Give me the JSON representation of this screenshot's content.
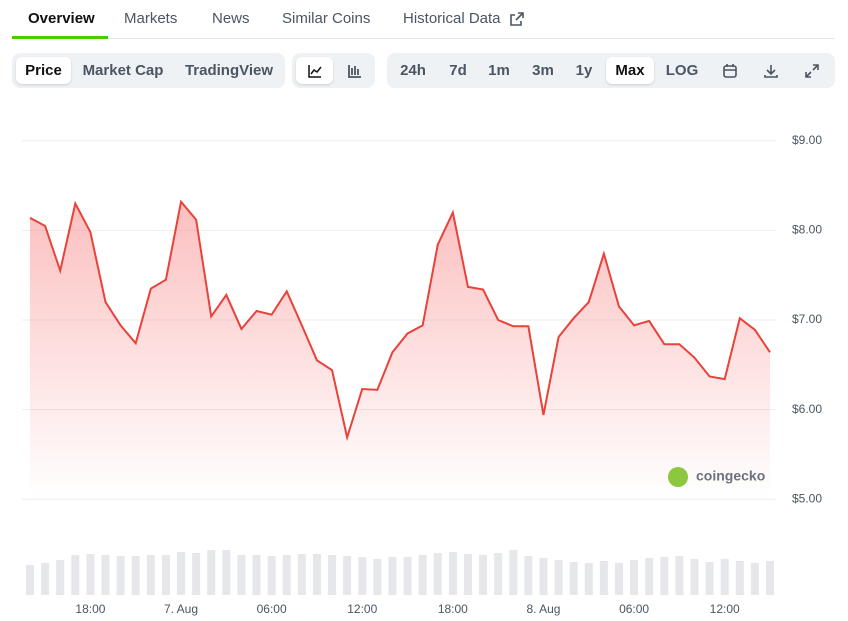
{
  "tabs": [
    "Overview",
    "Markets",
    "News",
    "Similar Coins",
    "Historical Data"
  ],
  "metric_buttons": [
    "Price",
    "Market Cap",
    "TradingView"
  ],
  "range_buttons": [
    "24h",
    "7d",
    "1m",
    "3m",
    "1y",
    "Max",
    "LOG"
  ],
  "watermark": "coingecko",
  "chart_data": {
    "type": "line",
    "color": "#e8423a",
    "grid": true,
    "categories": [
      null,
      null,
      null,
      null,
      "18:00",
      null,
      null,
      null,
      null,
      null,
      "7. Aug",
      null,
      null,
      null,
      null,
      null,
      "06:00",
      null,
      null,
      null,
      null,
      null,
      "12:00",
      null,
      null,
      null,
      null,
      null,
      "18:00",
      null,
      null,
      null,
      null,
      null,
      "8. Aug",
      null,
      null,
      null,
      null,
      null,
      "06:00",
      null,
      null,
      null,
      null,
      null,
      "12:00",
      null,
      null,
      null
    ],
    "values": [
      8.14,
      8.05,
      7.55,
      8.3,
      7.98,
      7.2,
      6.94,
      6.74,
      7.35,
      7.45,
      8.32,
      8.12,
      7.04,
      7.28,
      6.9,
      7.1,
      7.06,
      7.32,
      6.94,
      6.55,
      6.44,
      5.69,
      6.23,
      6.22,
      6.64,
      6.85,
      6.94,
      7.84,
      8.2,
      7.37,
      7.34,
      7.0,
      6.93,
      6.93,
      5.94,
      6.81,
      7.02,
      7.2,
      7.74,
      7.15,
      6.94,
      6.99,
      6.73,
      6.73,
      6.58,
      6.37,
      6.34,
      7.02,
      6.89,
      6.64
    ],
    "volumes": [
      30,
      32,
      35,
      40,
      41,
      40,
      39,
      39,
      40,
      40,
      43,
      42,
      45,
      45,
      40,
      40,
      39,
      40,
      41,
      41,
      40,
      39,
      38,
      36,
      38,
      38,
      40,
      42,
      43,
      41,
      40,
      42,
      45,
      39,
      37,
      35,
      33,
      32,
      34,
      32,
      35,
      37,
      38,
      39,
      36,
      33,
      36,
      34,
      32,
      34
    ],
    "ylim": [
      4.5,
      9.5
    ],
    "yticks": [
      {
        "value": 5,
        "label": "$5.00"
      },
      {
        "value": 6,
        "label": "$6.00"
      },
      {
        "value": 7,
        "label": "$7.00"
      },
      {
        "value": 8,
        "label": "$8.00"
      },
      {
        "value": 9,
        "label": "$9.00"
      }
    ]
  }
}
